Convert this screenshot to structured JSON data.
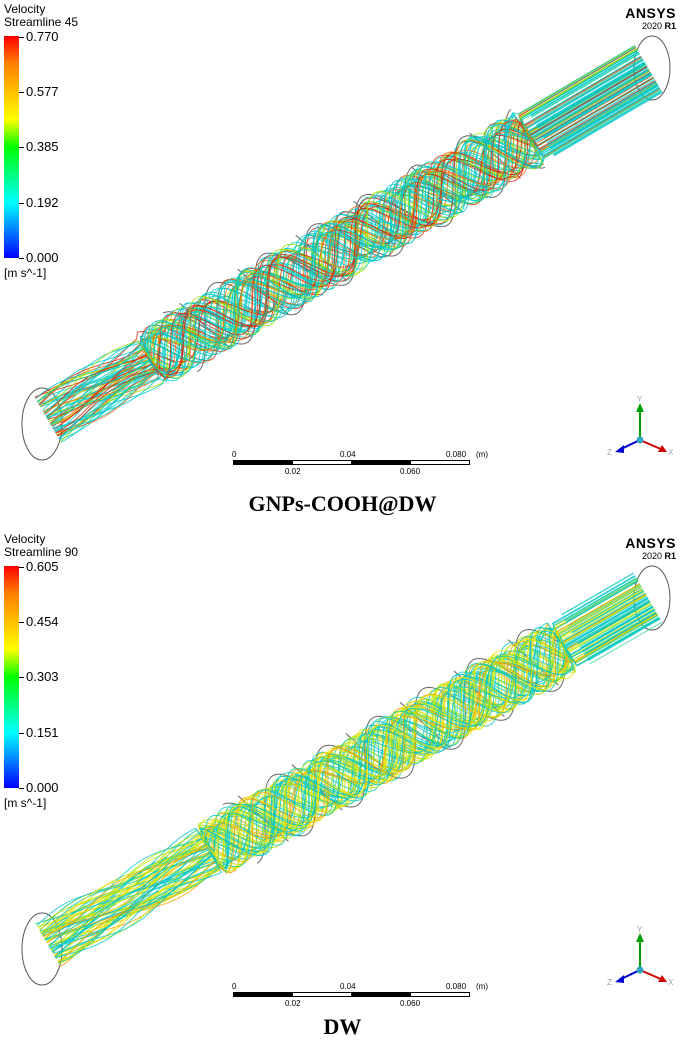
{
  "panels": [
    {
      "legend": {
        "title": "Velocity",
        "subtitle": "Streamline 45",
        "ticks": [
          "0.770",
          "0.577",
          "0.385",
          "0.192",
          "0.000"
        ],
        "units": "[m s^-1]",
        "range": [
          0.0,
          0.77
        ]
      },
      "brand": {
        "name": "ANSYS",
        "version": "2020",
        "release": "R1"
      },
      "scale_bar": {
        "labels_top": [
          "0",
          "0.04",
          "0.080"
        ],
        "labels_bottom": [
          "0.02",
          "0.060"
        ],
        "unit": "(m)"
      },
      "triad": {
        "x": "X",
        "y": "Y",
        "z": "Z"
      },
      "caption": "GNPs-COOH@DW",
      "flow_color_mix": {
        "low": "#00c8c8",
        "mid": "#a0e000",
        "high": "#ff6000",
        "peak": "#e02000"
      }
    },
    {
      "legend": {
        "title": "Velocity",
        "subtitle": "Streamline 90",
        "ticks": [
          "0.605",
          "0.454",
          "0.303",
          "0.151",
          "0.000"
        ],
        "units": "[m s^-1]",
        "range": [
          0.0,
          0.605
        ]
      },
      "brand": {
        "name": "ANSYS",
        "version": "2020",
        "release": "R1"
      },
      "scale_bar": {
        "labels_top": [
          "0",
          "0.04",
          "0.080"
        ],
        "labels_bottom": [
          "0.02",
          "0.060"
        ],
        "unit": "(m)"
      },
      "triad": {
        "x": "X",
        "y": "Y",
        "z": "Z"
      },
      "caption": "DW",
      "flow_color_mix": {
        "low": "#00c8c8",
        "mid": "#b8e800",
        "high": "#f0e000",
        "peak": "#f0a000"
      }
    }
  ]
}
